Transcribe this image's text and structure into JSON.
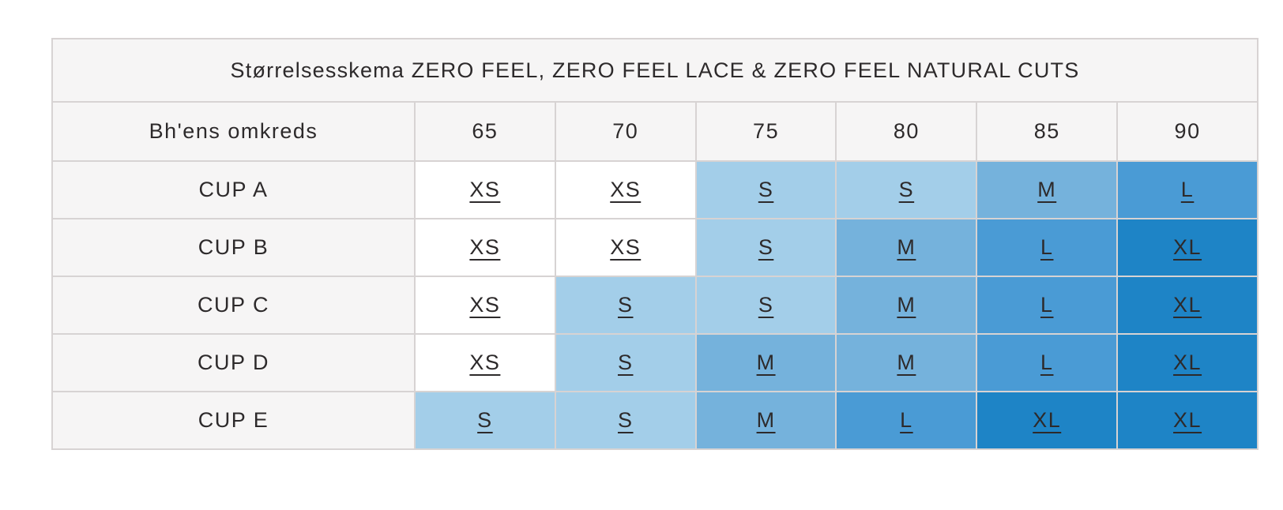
{
  "theme": {
    "text-color": "#2d2a2b",
    "border-color": "#d7d3d3",
    "header-bg": "#f6f5f5"
  },
  "table": {
    "title": "Størrelsesskema ZERO FEEL, ZERO FEEL LACE & ZERO FEEL NATURAL CUTS",
    "corner_label": "Bh'ens omkreds",
    "band_sizes": [
      "65",
      "70",
      "75",
      "80",
      "85",
      "90"
    ],
    "rows": [
      {
        "label": "CUP A",
        "sizes": [
          "XS",
          "XS",
          "S",
          "S",
          "M",
          "L"
        ]
      },
      {
        "label": "CUP B",
        "sizes": [
          "XS",
          "XS",
          "S",
          "M",
          "L",
          "XL"
        ]
      },
      {
        "label": "CUP C",
        "sizes": [
          "XS",
          "S",
          "S",
          "M",
          "L",
          "XL"
        ]
      },
      {
        "label": "CUP D",
        "sizes": [
          "XS",
          "S",
          "M",
          "M",
          "L",
          "XL"
        ]
      },
      {
        "label": "CUP E",
        "sizes": [
          "S",
          "S",
          "M",
          "L",
          "XL",
          "XL"
        ]
      }
    ],
    "size_colors": {
      "XS": "#ffffff",
      "S": "#a3cee9",
      "M": "#75b2dc",
      "L": "#4a9bd5",
      "XL": "#1e84c6"
    }
  }
}
